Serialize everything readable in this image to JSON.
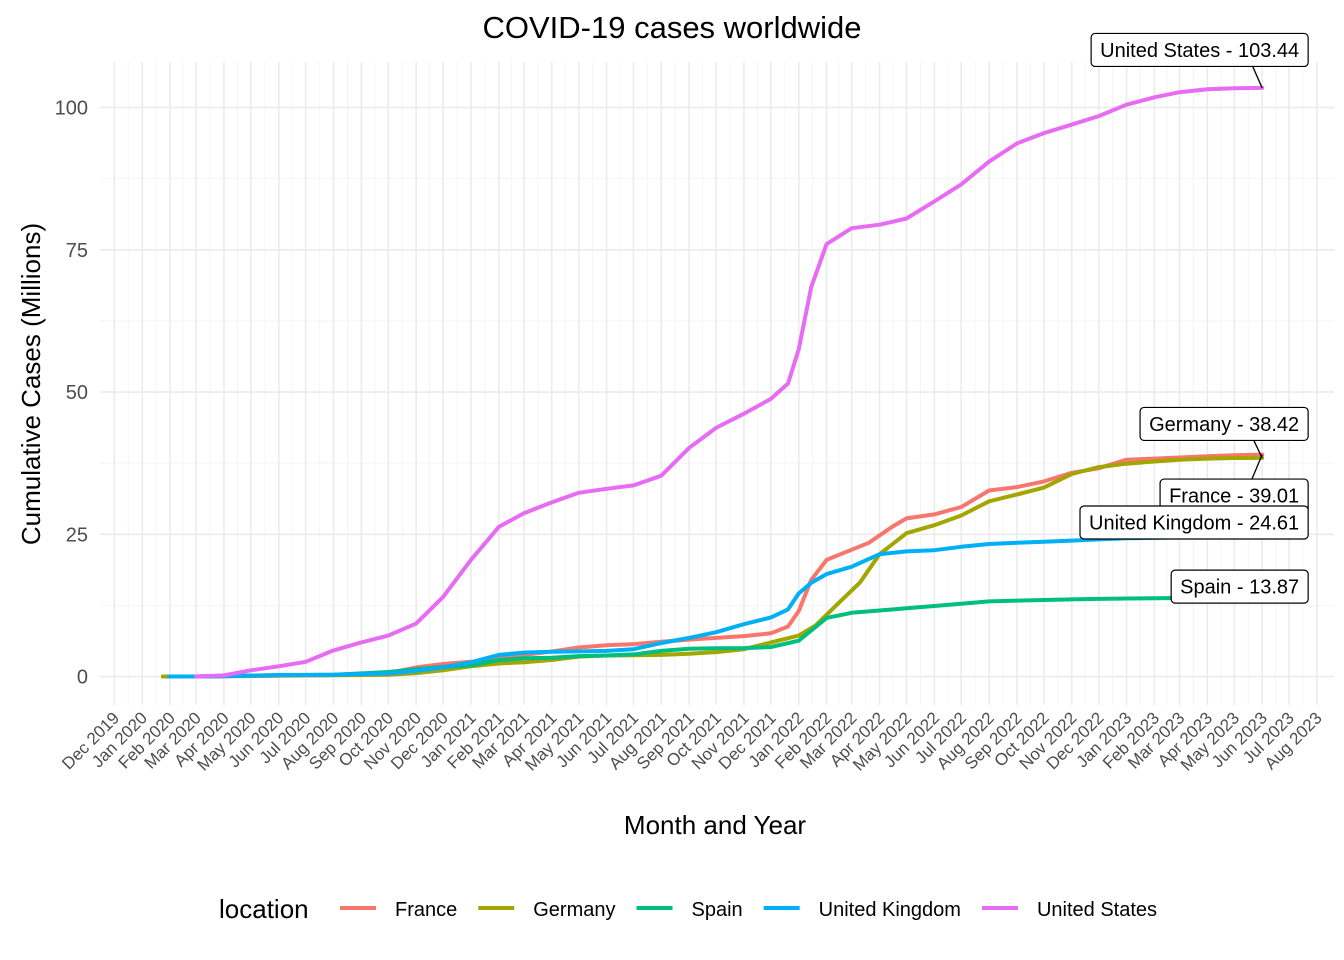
{
  "chart_data": {
    "type": "line",
    "title": "COVID-19 cases worldwide",
    "xlabel": "Month and Year",
    "ylabel": "Cumulative Cases (Millions)",
    "x_range": [
      "2019-11-15",
      "2023-08-20"
    ],
    "ylim": [
      -5,
      108
    ],
    "y_ticks": [
      0,
      25,
      50,
      75,
      100
    ],
    "x_tick_labels": [
      "Dec 2019",
      "Jan 2020",
      "Feb 2020",
      "Mar 2020",
      "Apr 2020",
      "May 2020",
      "Jun 2020",
      "Jul 2020",
      "Aug 2020",
      "Sep 2020",
      "Oct 2020",
      "Nov 2020",
      "Dec 2020",
      "Jan 2021",
      "Feb 2021",
      "Mar 2021",
      "Apr 2021",
      "May 2021",
      "Jun 2021",
      "Jul 2021",
      "Aug 2021",
      "Sep 2021",
      "Oct 2021",
      "Nov 2021",
      "Dec 2021",
      "Jan 2022",
      "Feb 2022",
      "Mar 2022",
      "Apr 2022",
      "May 2022",
      "Jun 2022",
      "Jul 2022",
      "Aug 2022",
      "Sep 2022",
      "Oct 2022",
      "Nov 2022",
      "Dec 2022",
      "Jan 2023",
      "Feb 2023",
      "Mar 2023",
      "Apr 2023",
      "May 2023",
      "Jun 2023",
      "Jul 2023",
      "Aug 2023"
    ],
    "x_tick_dates": [
      "2019-12-01",
      "2020-01-01",
      "2020-02-01",
      "2020-03-01",
      "2020-04-01",
      "2020-05-01",
      "2020-06-01",
      "2020-07-01",
      "2020-08-01",
      "2020-09-01",
      "2020-10-01",
      "2020-11-01",
      "2020-12-01",
      "2021-01-01",
      "2021-02-01",
      "2021-03-01",
      "2021-04-01",
      "2021-05-01",
      "2021-06-01",
      "2021-07-01",
      "2021-08-01",
      "2021-09-01",
      "2021-10-01",
      "2021-11-01",
      "2021-12-01",
      "2022-01-01",
      "2022-02-01",
      "2022-03-01",
      "2022-04-01",
      "2022-05-01",
      "2022-06-01",
      "2022-07-01",
      "2022-08-01",
      "2022-09-01",
      "2022-10-01",
      "2022-11-01",
      "2022-12-01",
      "2023-01-01",
      "2023-02-01",
      "2023-03-01",
      "2023-04-01",
      "2023-05-01",
      "2023-06-01",
      "2023-07-01",
      "2023-08-01"
    ],
    "legend_title": "location",
    "legend_position": "bottom",
    "grid": true,
    "series": [
      {
        "name": "France",
        "color": "#F8766D",
        "end_label": "France - 39.01",
        "points": [
          [
            "2020-01-24",
            0
          ],
          [
            "2020-03-01",
            0
          ],
          [
            "2020-04-01",
            0.05
          ],
          [
            "2020-06-01",
            0.15
          ],
          [
            "2020-08-01",
            0.25
          ],
          [
            "2020-10-01",
            0.6
          ],
          [
            "2020-11-01",
            1.6
          ],
          [
            "2020-12-01",
            2.2
          ],
          [
            "2021-01-01",
            2.6
          ],
          [
            "2021-02-01",
            3.3
          ],
          [
            "2021-03-01",
            3.8
          ],
          [
            "2021-04-01",
            4.4
          ],
          [
            "2021-05-01",
            5.1
          ],
          [
            "2021-06-01",
            5.5
          ],
          [
            "2021-07-01",
            5.7
          ],
          [
            "2021-08-01",
            6.1
          ],
          [
            "2021-09-01",
            6.5
          ],
          [
            "2021-10-01",
            6.8
          ],
          [
            "2021-11-01",
            7.1
          ],
          [
            "2021-12-01",
            7.6
          ],
          [
            "2021-12-20",
            8.8
          ],
          [
            "2022-01-01",
            11.5
          ],
          [
            "2022-01-15",
            17
          ],
          [
            "2022-02-01",
            20.5
          ],
          [
            "2022-03-01",
            22.3
          ],
          [
            "2022-03-20",
            23.5
          ],
          [
            "2022-04-15",
            26.3
          ],
          [
            "2022-05-01",
            27.8
          ],
          [
            "2022-06-01",
            28.5
          ],
          [
            "2022-07-01",
            29.8
          ],
          [
            "2022-08-01",
            32.7
          ],
          [
            "2022-09-01",
            33.3
          ],
          [
            "2022-10-01",
            34.3
          ],
          [
            "2022-11-01",
            35.8
          ],
          [
            "2022-12-01",
            36.6
          ],
          [
            "2023-01-01",
            38.1
          ],
          [
            "2023-02-01",
            38.3
          ],
          [
            "2023-03-01",
            38.5
          ],
          [
            "2023-04-01",
            38.7
          ],
          [
            "2023-05-01",
            38.9
          ],
          [
            "2023-06-01",
            39.01
          ]
        ]
      },
      {
        "name": "Germany",
        "color": "#A3A500",
        "end_label": "Germany - 38.42",
        "points": [
          [
            "2020-01-24",
            0
          ],
          [
            "2020-03-01",
            0
          ],
          [
            "2020-04-01",
            0.1
          ],
          [
            "2020-06-01",
            0.18
          ],
          [
            "2020-08-01",
            0.22
          ],
          [
            "2020-10-01",
            0.3
          ],
          [
            "2020-11-01",
            0.6
          ],
          [
            "2020-12-01",
            1.1
          ],
          [
            "2021-01-01",
            1.8
          ],
          [
            "2021-02-01",
            2.3
          ],
          [
            "2021-03-01",
            2.5
          ],
          [
            "2021-04-01",
            2.9
          ],
          [
            "2021-05-01",
            3.5
          ],
          [
            "2021-06-01",
            3.7
          ],
          [
            "2021-07-01",
            3.73
          ],
          [
            "2021-08-01",
            3.8
          ],
          [
            "2021-09-01",
            4.0
          ],
          [
            "2021-10-01",
            4.3
          ],
          [
            "2021-11-01",
            4.8
          ],
          [
            "2021-12-01",
            6.0
          ],
          [
            "2022-01-01",
            7.2
          ],
          [
            "2022-01-20",
            9.0
          ],
          [
            "2022-02-15",
            13
          ],
          [
            "2022-03-10",
            16.5
          ],
          [
            "2022-04-01",
            21.5
          ],
          [
            "2022-05-01",
            25.2
          ],
          [
            "2022-06-01",
            26.6
          ],
          [
            "2022-07-01",
            28.3
          ],
          [
            "2022-08-01",
            30.8
          ],
          [
            "2022-09-01",
            32.0
          ],
          [
            "2022-10-01",
            33.2
          ],
          [
            "2022-11-01",
            35.6
          ],
          [
            "2022-12-01",
            36.8
          ],
          [
            "2023-01-01",
            37.4
          ],
          [
            "2023-02-01",
            37.8
          ],
          [
            "2023-03-01",
            38.1
          ],
          [
            "2023-04-01",
            38.3
          ],
          [
            "2023-05-01",
            38.4
          ],
          [
            "2023-06-01",
            38.42
          ]
        ]
      },
      {
        "name": "Spain",
        "color": "#00BF7D",
        "end_label": "Spain - 13.87",
        "points": [
          [
            "2020-01-31",
            0
          ],
          [
            "2020-03-01",
            0
          ],
          [
            "2020-04-01",
            0.1
          ],
          [
            "2020-06-01",
            0.24
          ],
          [
            "2020-08-01",
            0.3
          ],
          [
            "2020-10-01",
            0.8
          ],
          [
            "2020-11-01",
            1.3
          ],
          [
            "2020-12-01",
            1.7
          ],
          [
            "2021-01-01",
            1.95
          ],
          [
            "2021-02-01",
            2.9
          ],
          [
            "2021-03-01",
            3.2
          ],
          [
            "2021-04-01",
            3.3
          ],
          [
            "2021-05-01",
            3.6
          ],
          [
            "2021-06-01",
            3.7
          ],
          [
            "2021-07-01",
            3.9
          ],
          [
            "2021-08-01",
            4.5
          ],
          [
            "2021-09-01",
            4.9
          ],
          [
            "2021-10-01",
            4.98
          ],
          [
            "2021-11-01",
            5.0
          ],
          [
            "2021-12-01",
            5.2
          ],
          [
            "2022-01-01",
            6.3
          ],
          [
            "2022-02-01",
            10.3
          ],
          [
            "2022-03-01",
            11.2
          ],
          [
            "2022-04-01",
            11.6
          ],
          [
            "2022-05-01",
            12.0
          ],
          [
            "2022-06-01",
            12.4
          ],
          [
            "2022-07-01",
            12.8
          ],
          [
            "2022-08-01",
            13.2
          ],
          [
            "2022-09-01",
            13.35
          ],
          [
            "2022-10-01",
            13.45
          ],
          [
            "2022-11-01",
            13.55
          ],
          [
            "2022-12-01",
            13.65
          ],
          [
            "2023-01-01",
            13.72
          ],
          [
            "2023-03-01",
            13.8
          ],
          [
            "2023-06-01",
            13.87
          ]
        ]
      },
      {
        "name": "United Kingdom",
        "color": "#00B0F6",
        "end_label": "United Kingdom - 24.61",
        "points": [
          [
            "2020-01-31",
            0
          ],
          [
            "2020-03-01",
            0.01
          ],
          [
            "2020-04-01",
            0.05
          ],
          [
            "2020-06-01",
            0.27
          ],
          [
            "2020-08-01",
            0.33
          ],
          [
            "2020-10-01",
            0.55
          ],
          [
            "2020-11-01",
            1.0
          ],
          [
            "2020-12-01",
            1.6
          ],
          [
            "2021-01-01",
            2.5
          ],
          [
            "2021-02-01",
            3.8
          ],
          [
            "2021-03-01",
            4.2
          ],
          [
            "2021-04-01",
            4.35
          ],
          [
            "2021-05-01",
            4.42
          ],
          [
            "2021-06-01",
            4.5
          ],
          [
            "2021-07-01",
            4.8
          ],
          [
            "2021-08-01",
            5.9
          ],
          [
            "2021-09-01",
            6.8
          ],
          [
            "2021-10-01",
            7.8
          ],
          [
            "2021-11-01",
            9.2
          ],
          [
            "2021-12-01",
            10.4
          ],
          [
            "2021-12-20",
            11.8
          ],
          [
            "2022-01-01",
            14.6
          ],
          [
            "2022-01-15",
            16.5
          ],
          [
            "2022-02-01",
            18.0
          ],
          [
            "2022-03-01",
            19.3
          ],
          [
            "2022-04-01",
            21.5
          ],
          [
            "2022-05-01",
            22.0
          ],
          [
            "2022-06-01",
            22.2
          ],
          [
            "2022-07-01",
            22.8
          ],
          [
            "2022-08-01",
            23.3
          ],
          [
            "2022-09-01",
            23.5
          ],
          [
            "2022-10-01",
            23.7
          ],
          [
            "2022-11-01",
            23.9
          ],
          [
            "2022-12-01",
            24.1
          ],
          [
            "2023-01-01",
            24.3
          ],
          [
            "2023-03-01",
            24.45
          ],
          [
            "2023-06-01",
            24.61
          ]
        ]
      },
      {
        "name": "United States",
        "color": "#E76BF3",
        "end_label": "United States - 103.44",
        "points": [
          [
            "2020-03-01",
            0
          ],
          [
            "2020-04-01",
            0.2
          ],
          [
            "2020-05-01",
            1.1
          ],
          [
            "2020-06-01",
            1.8
          ],
          [
            "2020-07-01",
            2.6
          ],
          [
            "2020-08-01",
            4.6
          ],
          [
            "2020-09-01",
            6.0
          ],
          [
            "2020-10-01",
            7.2
          ],
          [
            "2020-11-01",
            9.3
          ],
          [
            "2020-12-01",
            14.0
          ],
          [
            "2021-01-01",
            20.5
          ],
          [
            "2021-02-01",
            26.3
          ],
          [
            "2021-03-01",
            28.7
          ],
          [
            "2021-04-01",
            30.6
          ],
          [
            "2021-05-01",
            32.3
          ],
          [
            "2021-06-01",
            33.0
          ],
          [
            "2021-07-01",
            33.6
          ],
          [
            "2021-08-01",
            35.3
          ],
          [
            "2021-09-01",
            40.2
          ],
          [
            "2021-10-01",
            43.7
          ],
          [
            "2021-11-01",
            46.2
          ],
          [
            "2021-12-01",
            48.8
          ],
          [
            "2021-12-20",
            51.5
          ],
          [
            "2022-01-01",
            57.5
          ],
          [
            "2022-01-15",
            68.5
          ],
          [
            "2022-02-01",
            76.0
          ],
          [
            "2022-03-01",
            78.8
          ],
          [
            "2022-04-01",
            79.4
          ],
          [
            "2022-05-01",
            80.5
          ],
          [
            "2022-06-01",
            83.5
          ],
          [
            "2022-07-01",
            86.5
          ],
          [
            "2022-08-01",
            90.5
          ],
          [
            "2022-09-01",
            93.7
          ],
          [
            "2022-10-01",
            95.5
          ],
          [
            "2022-11-01",
            97.0
          ],
          [
            "2022-12-01",
            98.5
          ],
          [
            "2023-01-01",
            100.5
          ],
          [
            "2023-02-01",
            101.8
          ],
          [
            "2023-03-01",
            102.7
          ],
          [
            "2023-04-01",
            103.2
          ],
          [
            "2023-05-01",
            103.4
          ],
          [
            "2023-06-01",
            103.44
          ]
        ]
      }
    ]
  }
}
